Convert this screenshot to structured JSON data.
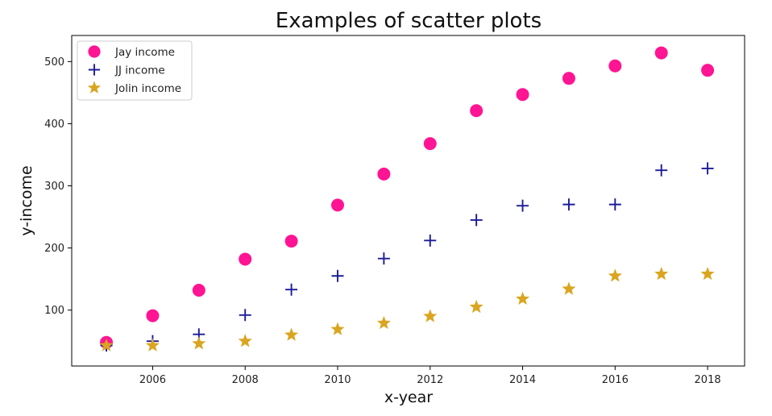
{
  "chart_data": {
    "type": "scatter",
    "title": "Examples of scatter plots",
    "xlabel": "x-year",
    "ylabel": "y-income",
    "xlim": [
      2004.25,
      2018.8
    ],
    "ylim": [
      10,
      542
    ],
    "xticks": [
      2006,
      2008,
      2010,
      2012,
      2014,
      2016,
      2018
    ],
    "yticks": [
      100,
      200,
      300,
      400,
      500
    ],
    "grid": false,
    "legend_position": "top-left",
    "x": [
      2005,
      2006,
      2007,
      2008,
      2009,
      2010,
      2011,
      2012,
      2013,
      2014,
      2015,
      2016,
      2017,
      2018
    ],
    "series": [
      {
        "name": "Jay income",
        "marker": "circle",
        "color": "#ff1493",
        "values": [
          48,
          91,
          132,
          182,
          211,
          269,
          319,
          368,
          421,
          447,
          473,
          493,
          514,
          486
        ]
      },
      {
        "name": "JJ income",
        "marker": "plus",
        "color": "#1c1c99",
        "values": [
          43,
          50,
          61,
          92,
          133,
          155,
          183,
          212,
          245,
          268,
          270,
          270,
          325,
          328
        ]
      },
      {
        "name": "Jolin income",
        "marker": "star",
        "color": "#daa520",
        "values": [
          43,
          43,
          46,
          50,
          60,
          69,
          79,
          90,
          105,
          118,
          134,
          155,
          158,
          158
        ]
      }
    ]
  }
}
